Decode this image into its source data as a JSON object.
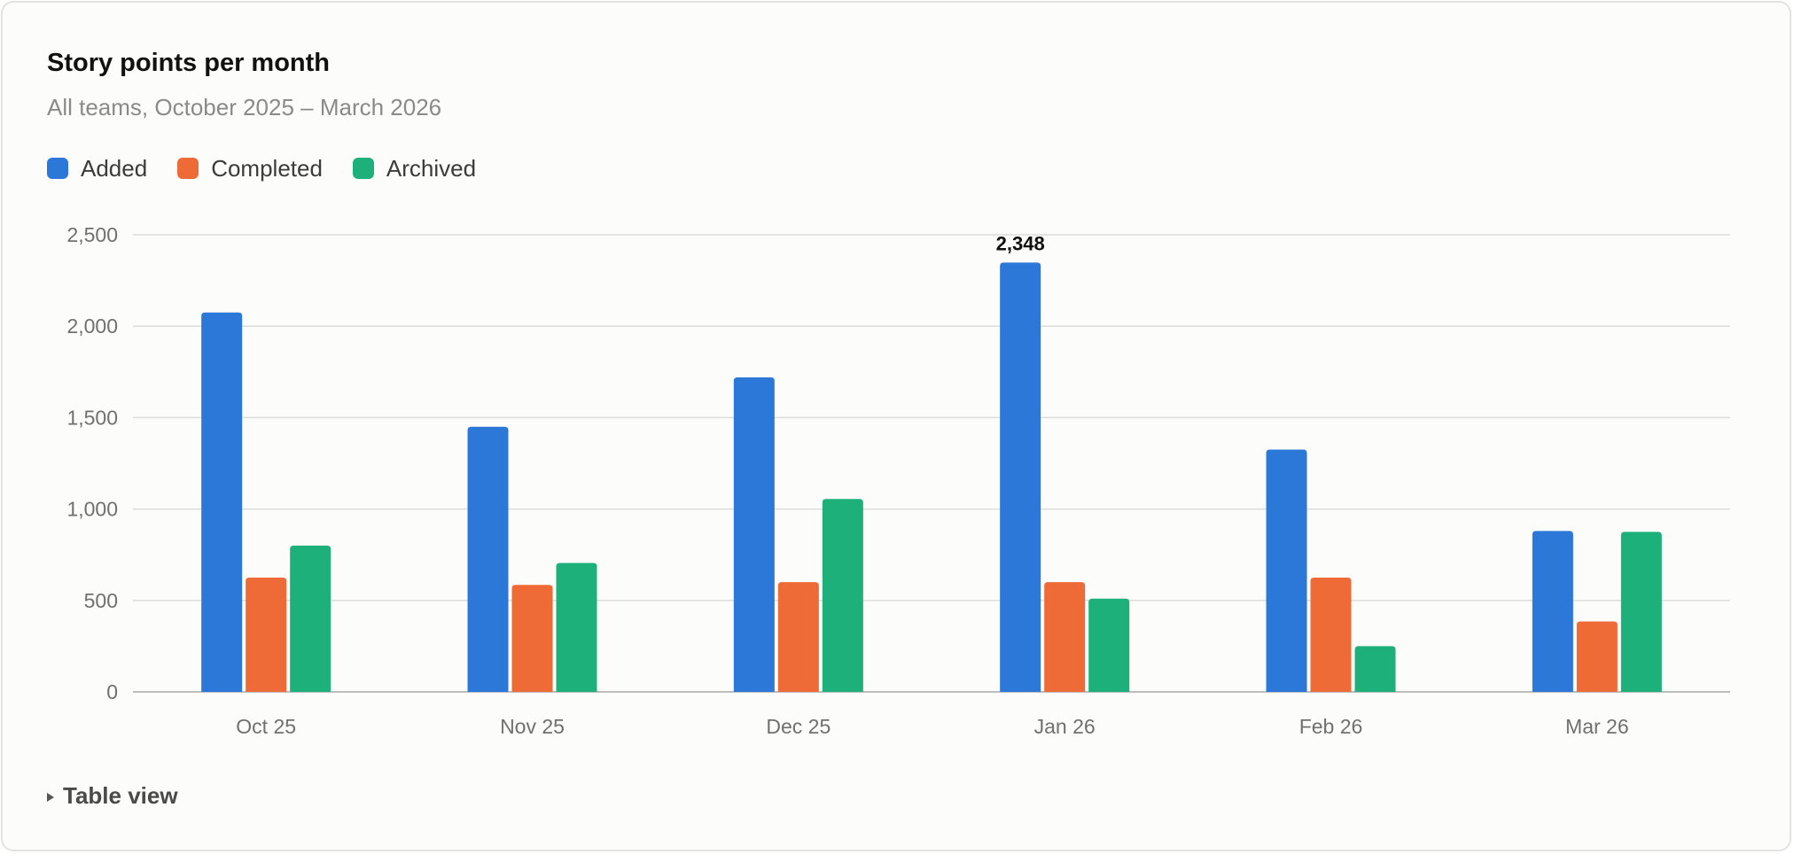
{
  "header": {
    "title": "Story points per month",
    "subtitle": "All teams, October 2025 – March 2026"
  },
  "legend": [
    {
      "label": "Added",
      "color": "#2b78d9"
    },
    {
      "label": "Completed",
      "color": "#ee6a37"
    },
    {
      "label": "Archived",
      "color": "#1db07b"
    }
  ],
  "chart_data": {
    "type": "bar",
    "categories": [
      "Oct 25",
      "Nov 25",
      "Dec 25",
      "Jan 26",
      "Feb 26",
      "Mar 26"
    ],
    "series": [
      {
        "name": "Added",
        "color": "#2b78d9",
        "values": [
          2075,
          1450,
          1720,
          2348,
          1325,
          880
        ]
      },
      {
        "name": "Completed",
        "color": "#ee6a37",
        "values": [
          625,
          585,
          600,
          600,
          625,
          385
        ]
      },
      {
        "name": "Archived",
        "color": "#1db07b",
        "values": [
          800,
          705,
          1055,
          510,
          250,
          875
        ]
      }
    ],
    "y_ticks": [
      "0",
      "500",
      "1,000",
      "1,500",
      "2,000",
      "2,500"
    ],
    "ylim": [
      0,
      2500
    ],
    "grid": true,
    "annotations": [
      {
        "category": "Jan 26",
        "series": "Added",
        "label": "2,348"
      }
    ],
    "legend_position": "top-left"
  },
  "footer": {
    "table_toggle_label": "Table view"
  }
}
